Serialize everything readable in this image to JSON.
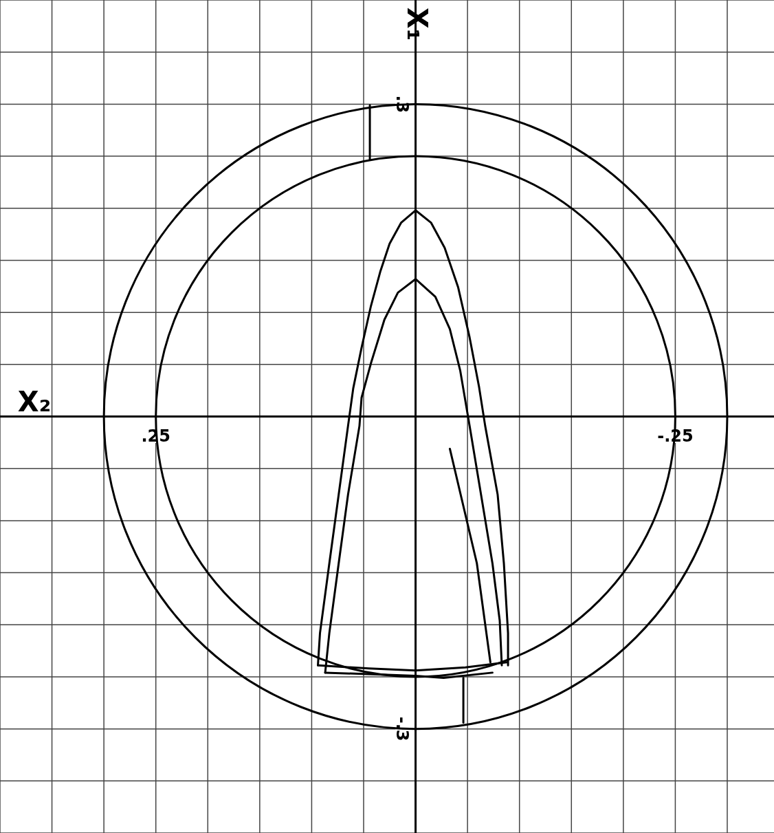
{
  "chart_data": {
    "type": "line",
    "xlabel": "X₂",
    "ylabel": "X₁",
    "xlim": [
      0.4,
      -0.345
    ],
    "ylim": [
      -0.4,
      0.4
    ],
    "xticks": [
      {
        "value": 0.4,
        "label": null
      },
      {
        "value": 0.35,
        "label": null
      },
      {
        "value": 0.3,
        "label": null
      },
      {
        "value": 0.25,
        "label": ".25"
      },
      {
        "value": 0.2,
        "label": null
      },
      {
        "value": 0.15,
        "label": null
      },
      {
        "value": 0.1,
        "label": null
      },
      {
        "value": 0.05,
        "label": null
      },
      {
        "value": -0.05,
        "label": null
      },
      {
        "value": -0.1,
        "label": null
      },
      {
        "value": -0.15,
        "label": null
      },
      {
        "value": -0.2,
        "label": null
      },
      {
        "value": -0.25,
        "label": "-.25"
      },
      {
        "value": -0.3,
        "label": null
      }
    ],
    "yticks": [
      {
        "value": -0.4,
        "label": null
      },
      {
        "value": -0.35,
        "label": null
      },
      {
        "value": -0.3,
        "label": "-.3"
      },
      {
        "value": -0.25,
        "label": null
      },
      {
        "value": -0.2,
        "label": null
      },
      {
        "value": -0.15,
        "label": null
      },
      {
        "value": -0.1,
        "label": null
      },
      {
        "value": -0.05,
        "label": null
      },
      {
        "value": 0.05,
        "label": null
      },
      {
        "value": 0.1,
        "label": null
      },
      {
        "value": 0.15,
        "label": null
      },
      {
        "value": 0.2,
        "label": null
      },
      {
        "value": 0.25,
        "label": null
      },
      {
        "value": 0.3,
        "label": ".3"
      },
      {
        "value": 0.35,
        "label": null
      },
      {
        "value": 0.4,
        "label": null
      }
    ],
    "grid": true,
    "marker": "none",
    "line_style": "solid",
    "series": [
      {
        "color": "#000000",
        "x": [
          0.094,
          0.092,
          0.083,
          0.074,
          0.065,
          0.06,
          0.052,
          0.043,
          0.034,
          0.025,
          0.014,
          0,
          -0.015,
          -0.028,
          -0.041,
          -0.052,
          -0.061,
          -0.067,
          -0.079,
          -0.085,
          -0.089,
          -0.089
        ],
        "values": [
          -0.239,
          -0.208,
          -0.141,
          -0.075,
          -0.009,
          0.027,
          0.066,
          0.106,
          0.139,
          0.166,
          0.186,
          0.198,
          0.186,
          0.162,
          0.124,
          0.076,
          0.029,
          -0.009,
          -0.075,
          -0.141,
          -0.208,
          -0.239
        ]
      },
      {
        "color": "#000000",
        "x": [
          0.087,
          0.083,
          0.074,
          0.065,
          0.054,
          0.052,
          0.043,
          0.03,
          0.017,
          0,
          -0.019,
          -0.033,
          -0.043,
          -0.052,
          -0.063,
          -0.074,
          -0.081,
          -0.083
        ],
        "values": [
          -0.246,
          -0.208,
          -0.141,
          -0.075,
          -0.009,
          0.018,
          0.051,
          0.093,
          0.119,
          0.132,
          0.115,
          0.084,
          0.044,
          -0.009,
          -0.075,
          -0.141,
          -0.196,
          -0.239
        ]
      },
      {
        "color": "#000000",
        "x": [
          0.094,
          0.045,
          0,
          -0.048,
          -0.088
        ],
        "values": [
          -0.239,
          -0.242,
          -0.244,
          -0.241,
          -0.236
        ]
      },
      {
        "color": "#000000",
        "x": [
          0.087,
          0,
          -0.027,
          -0.074
        ],
        "values": [
          -0.246,
          -0.249,
          -0.251,
          -0.246
        ]
      },
      {
        "color": "#000000",
        "x": [
          -0.033,
          -0.059,
          -0.072
        ],
        "values": [
          -0.031,
          -0.141,
          -0.236
        ]
      },
      {
        "color": "#000000",
        "x": [
          0.044,
          0.044
        ],
        "values": [
          0.299,
          0.247
        ]
      },
      {
        "color": "#000000",
        "x": [
          -0.046,
          -0.046
        ],
        "values": [
          -0.251,
          -0.294
        ]
      }
    ]
  }
}
